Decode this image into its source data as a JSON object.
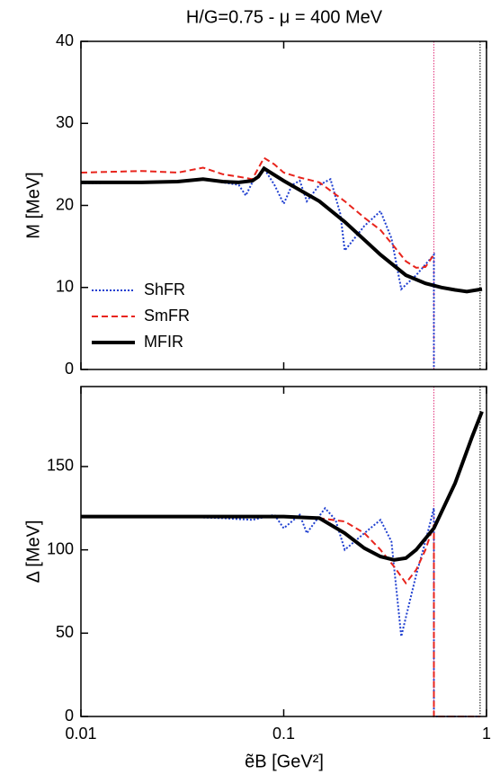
{
  "chart_data": [
    {
      "type": "line",
      "title": "H/G=0.75 - μ = 400 MeV",
      "ylabel": "M [MeV]",
      "xscale": "log",
      "xlim": [
        0.01,
        1
      ],
      "xticks": [
        0.01,
        0.1,
        1
      ],
      "ylim": [
        0,
        40
      ],
      "yticks": [
        0,
        10,
        20,
        30,
        40
      ],
      "legend": "lower left",
      "vlines": [
        {
          "x": 0.55,
          "color": "#e0307a"
        },
        {
          "x": 0.93,
          "color": "#000000"
        }
      ],
      "series": [
        {
          "name": "ShFR",
          "color": "#1f3fd0",
          "style": "dotted",
          "x": [
            0.01,
            0.02,
            0.03,
            0.04,
            0.05,
            0.06,
            0.065,
            0.07,
            0.08,
            0.09,
            0.1,
            0.11,
            0.12,
            0.13,
            0.15,
            0.17,
            0.19,
            0.2,
            0.25,
            0.3,
            0.34,
            0.38,
            0.45,
            0.5,
            0.55,
            0.55
          ],
          "values": [
            22.7,
            22.8,
            22.9,
            23.2,
            22.8,
            22.5,
            21.2,
            22.8,
            24.5,
            22.5,
            20.2,
            22.5,
            23.0,
            20.5,
            22.5,
            23.2,
            19.0,
            14.5,
            17.5,
            19.3,
            16.0,
            9.8,
            11.5,
            12.8,
            14.0,
            0
          ]
        },
        {
          "name": "SmFR",
          "color": "#e8241c",
          "style": "dashed",
          "x": [
            0.01,
            0.02,
            0.03,
            0.04,
            0.05,
            0.06,
            0.07,
            0.08,
            0.09,
            0.1,
            0.12,
            0.15,
            0.2,
            0.25,
            0.3,
            0.35,
            0.4,
            0.45,
            0.5,
            0.55
          ],
          "values": [
            24.0,
            24.2,
            24.0,
            24.6,
            23.8,
            23.5,
            23.2,
            25.8,
            25.0,
            24.0,
            23.4,
            22.8,
            20.5,
            18.5,
            17.0,
            15.0,
            13.2,
            12.4,
            12.5,
            14.0
          ]
        },
        {
          "name": "MFIR",
          "color": "#000000",
          "style": "solid",
          "x": [
            0.01,
            0.02,
            0.03,
            0.04,
            0.05,
            0.06,
            0.07,
            0.075,
            0.08,
            0.1,
            0.15,
            0.2,
            0.25,
            0.3,
            0.4,
            0.5,
            0.6,
            0.7,
            0.8,
            0.95
          ],
          "values": [
            22.8,
            22.8,
            22.9,
            23.2,
            22.9,
            22.8,
            23.0,
            23.5,
            24.5,
            23.0,
            20.5,
            18.0,
            15.8,
            14.0,
            11.5,
            10.5,
            10.0,
            9.7,
            9.5,
            9.8
          ]
        }
      ]
    },
    {
      "type": "line",
      "xlabel": "ẽB [GeV²]",
      "ylabel": "Δ [MeV]",
      "xscale": "log",
      "xlim": [
        0.01,
        1
      ],
      "xticks": [
        0.01,
        0.1,
        1
      ],
      "ylim": [
        0,
        198
      ],
      "yticks": [
        0,
        50,
        100,
        150
      ],
      "vlines": [
        {
          "x": 0.55,
          "color": "#e0307a"
        },
        {
          "x": 0.93,
          "color": "#000000"
        }
      ],
      "series": [
        {
          "name": "ShFR",
          "color": "#1f3fd0",
          "style": "dotted",
          "x": [
            0.01,
            0.03,
            0.05,
            0.07,
            0.09,
            0.1,
            0.12,
            0.13,
            0.16,
            0.18,
            0.2,
            0.25,
            0.3,
            0.34,
            0.38,
            0.45,
            0.5,
            0.55,
            0.55,
            0.93
          ],
          "values": [
            120,
            120,
            119,
            118,
            121,
            113,
            121,
            110,
            125,
            118,
            100,
            110,
            118,
            105,
            48,
            85,
            105,
            125,
            0,
            0
          ]
        },
        {
          "name": "SmFR",
          "color": "#e8241c",
          "style": "dashed",
          "x": [
            0.01,
            0.05,
            0.1,
            0.15,
            0.2,
            0.25,
            0.3,
            0.35,
            0.4,
            0.45,
            0.5,
            0.55,
            0.55,
            0.93
          ],
          "values": [
            120,
            120,
            120,
            119,
            117,
            110,
            100,
            90,
            80,
            88,
            100,
            115,
            0,
            0
          ]
        },
        {
          "name": "MFIR",
          "color": "#000000",
          "style": "solid",
          "x": [
            0.01,
            0.05,
            0.1,
            0.15,
            0.2,
            0.25,
            0.3,
            0.35,
            0.4,
            0.45,
            0.55,
            0.7,
            0.85,
            0.95
          ],
          "values": [
            120,
            120,
            120,
            119,
            110,
            101,
            96,
            94,
            95,
            100,
            113,
            140,
            168,
            183
          ]
        }
      ]
    }
  ]
}
